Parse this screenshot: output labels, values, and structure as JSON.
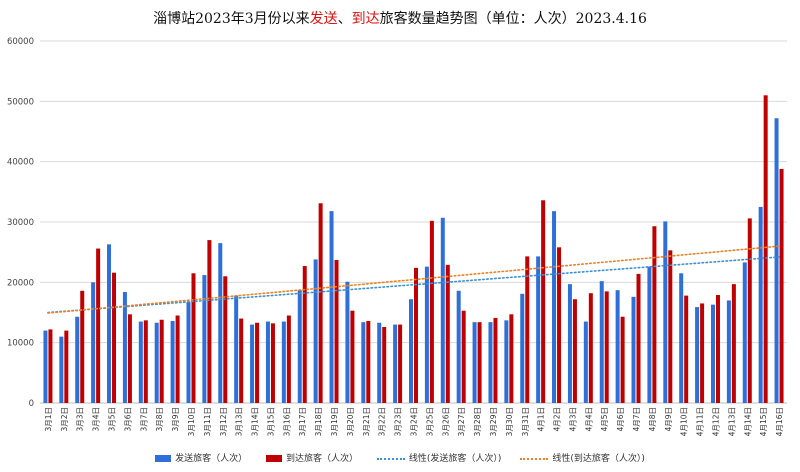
{
  "chart_data": {
    "type": "bar",
    "title": "淄博站2023年3月份以来发送、到达旅客数量趋势图（单位：人次）2023.4.16",
    "title_parts": {
      "prefix": "淄博站2023年3月份以来",
      "depart": "发送",
      "sep": "、",
      "arrive": "到达",
      "suffix": "旅客数量趋势图（单位：人次）2023.4.16"
    },
    "categories": [
      "3月1日",
      "3月2日",
      "3月3日",
      "3月4日",
      "3月5日",
      "3月6日",
      "3月7日",
      "3月8日",
      "3月9日",
      "3月10日",
      "3月11日",
      "3月12日",
      "3月13日",
      "3月14日",
      "3月15日",
      "3月16日",
      "3月17日",
      "3月18日",
      "3月19日",
      "3月20日",
      "3月21日",
      "3月22日",
      "3月23日",
      "3月24日",
      "3月25日",
      "3月26日",
      "3月27日",
      "3月28日",
      "3月29日",
      "3月30日",
      "3月31日",
      "4月1日",
      "4月2日",
      "4月3日",
      "4月4日",
      "4月5日",
      "4月6日",
      "4月7日",
      "4月8日",
      "4月9日",
      "4月10日",
      "4月11日",
      "4月12日",
      "4月13日",
      "4月14日",
      "4月15日",
      "4月16日"
    ],
    "series": [
      {
        "name": "发送旅客（人次）",
        "color": "#2e6fd8",
        "values": [
          12000,
          11000,
          14300,
          20000,
          26300,
          18400,
          13500,
          13300,
          13600,
          16700,
          21200,
          26500,
          17800,
          13000,
          13500,
          13500,
          18700,
          23800,
          31800,
          20100,
          13400,
          13300,
          13000,
          17200,
          22600,
          30700,
          18600,
          13400,
          13400,
          13700,
          18100,
          24300,
          31800,
          19700,
          13500,
          20200,
          18700,
          17600,
          22600,
          30100,
          21500,
          15900,
          16300,
          17000,
          23300,
          32500,
          47200
        ]
      },
      {
        "name": "到达旅客（人次）",
        "color": "#c00000",
        "values": [
          12200,
          12000,
          18600,
          25600,
          21600,
          14700,
          13700,
          13800,
          14500,
          21500,
          27000,
          21000,
          14000,
          13300,
          13200,
          14500,
          22700,
          33100,
          23700,
          15300,
          13600,
          12600,
          13000,
          22400,
          30200,
          22900,
          15300,
          13400,
          14100,
          14700,
          24300,
          33600,
          25800,
          17200,
          18200,
          18500,
          14300,
          21400,
          29300,
          25300,
          17800,
          16500,
          17900,
          19700,
          30600,
          51000,
          38800
        ]
      }
    ],
    "trendlines": [
      {
        "name": "线性(发送旅客（人次）)",
        "color": "#3d8fd6",
        "start": 15000,
        "end": 24200
      },
      {
        "name": "线性(到达旅客（人次）)",
        "color": "#f08020",
        "start": 14900,
        "end": 26000
      }
    ],
    "ylim": [
      0,
      60000
    ],
    "yticks": [
      0,
      10000,
      20000,
      30000,
      40000,
      50000,
      60000
    ],
    "grid": true,
    "legend_position": "bottom",
    "xlabel": "",
    "ylabel": ""
  }
}
